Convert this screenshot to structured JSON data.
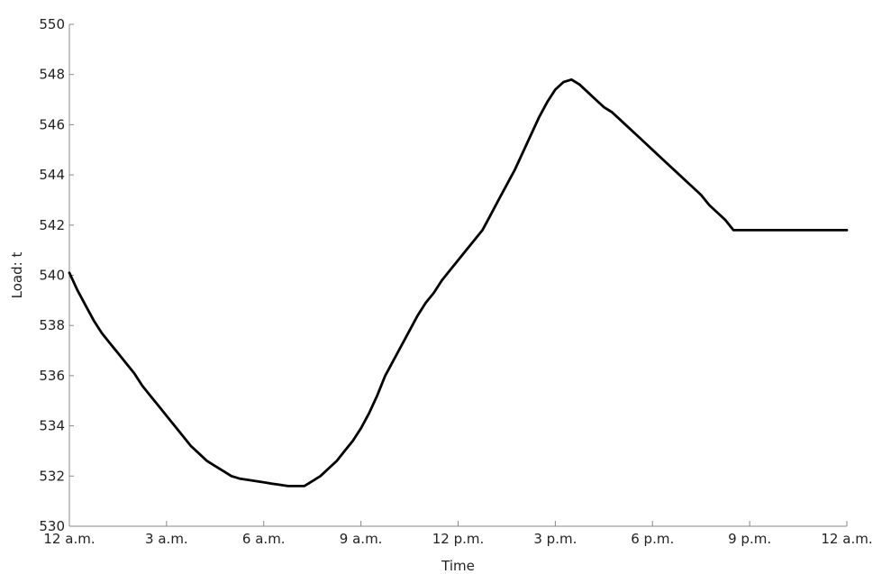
{
  "chart_data": {
    "type": "line",
    "title": "",
    "xlabel": "Time",
    "ylabel": "Load: t",
    "xlim": [
      0,
      24
    ],
    "ylim": [
      530,
      550
    ],
    "grid": false,
    "x_ticks": [
      {
        "value": 0,
        "label": "12 a.m."
      },
      {
        "value": 3,
        "label": "3 a.m."
      },
      {
        "value": 6,
        "label": "6 a.m."
      },
      {
        "value": 9,
        "label": "9 a.m."
      },
      {
        "value": 12,
        "label": "12 p.m."
      },
      {
        "value": 15,
        "label": "3 p.m."
      },
      {
        "value": 18,
        "label": "6 p.m."
      },
      {
        "value": 21,
        "label": "9 p.m."
      },
      {
        "value": 24,
        "label": "12 a.m."
      }
    ],
    "y_ticks": [
      530,
      532,
      534,
      536,
      538,
      540,
      542,
      544,
      546,
      548,
      550
    ],
    "colors": {
      "line": "#000000",
      "axis": "#888888",
      "text": "#222222"
    },
    "series": [
      {
        "x": [
          0,
          0.25,
          0.5,
          0.75,
          1,
          1.25,
          1.5,
          1.75,
          2,
          2.25,
          2.5,
          2.75,
          3,
          3.25,
          3.5,
          3.75,
          4,
          4.25,
          4.5,
          4.75,
          5,
          5.25,
          5.5,
          5.75,
          6,
          6.25,
          6.5,
          6.75,
          7,
          7.25,
          7.5,
          7.75,
          8,
          8.25,
          8.5,
          8.75,
          9,
          9.25,
          9.5,
          9.75,
          10,
          10.25,
          10.5,
          10.75,
          11,
          11.25,
          11.5,
          11.75,
          12,
          12.25,
          12.5,
          12.75,
          13,
          13.25,
          13.5,
          13.75,
          14,
          14.25,
          14.5,
          14.75,
          15,
          15.25,
          15.5,
          15.75,
          16,
          16.25,
          16.5,
          16.75,
          17,
          17.25,
          17.5,
          17.75,
          18,
          18.25,
          18.5,
          18.75,
          19,
          19.25,
          19.5,
          19.75,
          20,
          20.25,
          20.5,
          20.75,
          21,
          21.25,
          21.5,
          21.75,
          22,
          22.25,
          22.5,
          22.75,
          23,
          23.25,
          23.5,
          23.75,
          24
        ],
        "y": [
          540.1,
          539.4,
          538.8,
          538.2,
          537.7,
          537.3,
          536.9,
          536.5,
          536.1,
          535.6,
          535.2,
          534.8,
          534.4,
          534.0,
          533.6,
          533.2,
          532.9,
          532.6,
          532.4,
          532.2,
          532.0,
          531.9,
          531.85,
          531.8,
          531.75,
          531.7,
          531.65,
          531.6,
          531.6,
          531.6,
          531.8,
          532.0,
          532.3,
          532.6,
          533.0,
          533.4,
          533.9,
          534.5,
          535.2,
          536.0,
          536.6,
          537.2,
          537.8,
          538.4,
          538.9,
          539.3,
          539.8,
          540.2,
          540.6,
          541.0,
          541.4,
          541.8,
          542.4,
          543.0,
          543.6,
          544.2,
          544.9,
          545.6,
          546.3,
          546.9,
          547.4,
          547.7,
          547.8,
          547.6,
          547.3,
          547.0,
          546.7,
          546.5,
          546.2,
          545.9,
          545.6,
          545.3,
          545.0,
          544.7,
          544.4,
          544.1,
          543.8,
          543.5,
          543.2,
          542.8,
          542.5,
          542.2,
          541.8,
          541.8,
          541.8,
          541.8,
          541.8,
          541.8,
          541.8,
          541.8,
          541.8,
          541.8,
          541.8,
          541.8,
          541.8,
          541.8,
          541.8
        ]
      }
    ]
  }
}
